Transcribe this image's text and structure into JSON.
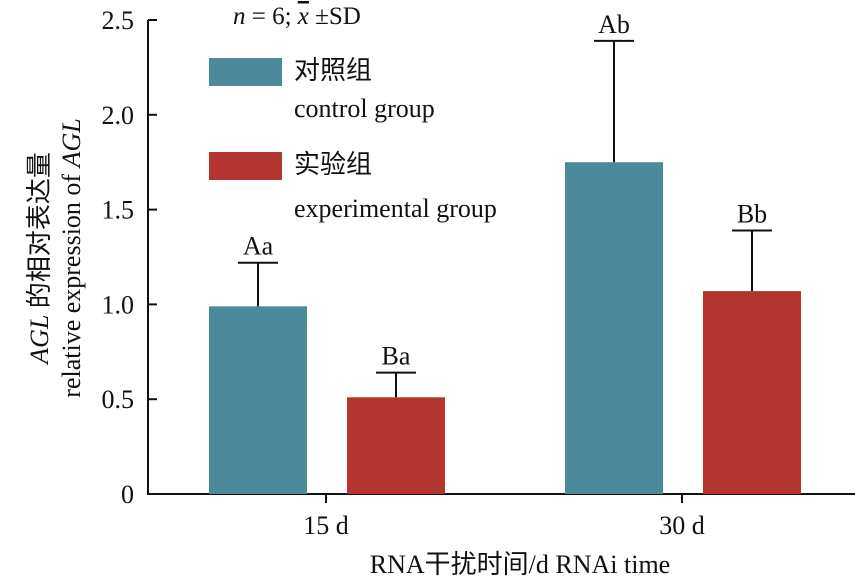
{
  "chart_data": {
    "type": "bar",
    "annotation": {
      "n": "n",
      "eq": " = 6; ",
      "x": "x",
      "sd": " ±SD"
    },
    "categories": [
      "15 d",
      "30 d"
    ],
    "series": [
      {
        "name": "对照组",
        "name_en": "control group",
        "color": "#4c8a9b",
        "values": [
          0.99,
          1.75
        ],
        "errors": [
          0.23,
          0.64
        ],
        "labels": [
          "Aa",
          "Ab"
        ]
      },
      {
        "name": "实验组",
        "name_en": "experimental group",
        "color": "#b3352f",
        "values": [
          0.51,
          1.07
        ],
        "errors": [
          0.13,
          0.32
        ],
        "labels": [
          "Ba",
          "Bb"
        ]
      }
    ],
    "yticks": [
      "0",
      "0.5",
      "1.0",
      "1.5",
      "2.0",
      "2.5"
    ],
    "ylim": [
      0,
      2.5
    ],
    "ylabel_line1_italic": "AGL",
    "ylabel_line1_rest": " 的相对表达量",
    "ylabel_line2_rest": "relative expression of ",
    "ylabel_line2_italic": "AGL",
    "xlabel": "RNA干扰时间/d RNAi time",
    "legend_position": "top-left"
  }
}
